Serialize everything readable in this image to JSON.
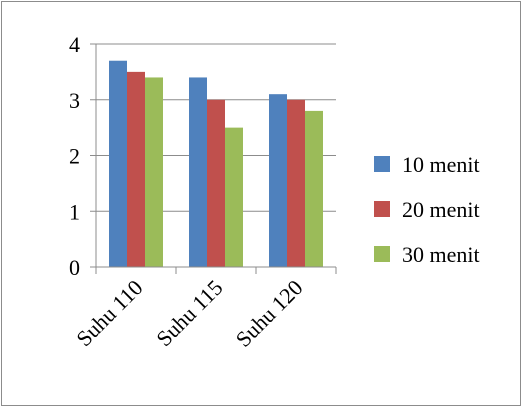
{
  "chart_data": {
    "type": "bar",
    "title": "",
    "xlabel": "",
    "ylabel": "",
    "categories": [
      "Suhu 110",
      "Suhu 115",
      "Suhu 120"
    ],
    "series": [
      {
        "name": "10 menit",
        "color": "#4f81bd",
        "values": [
          3.7,
          3.4,
          3.1
        ]
      },
      {
        "name": "20 menit",
        "color": "#c0504d",
        "values": [
          3.5,
          3.0,
          3.0
        ]
      },
      {
        "name": "30 menit",
        "color": "#9bbb59",
        "values": [
          3.4,
          2.5,
          2.8
        ]
      }
    ],
    "ylim": [
      0,
      4
    ],
    "yticks": [
      0,
      1,
      2,
      3,
      4
    ],
    "grid": true,
    "legend": "right"
  }
}
